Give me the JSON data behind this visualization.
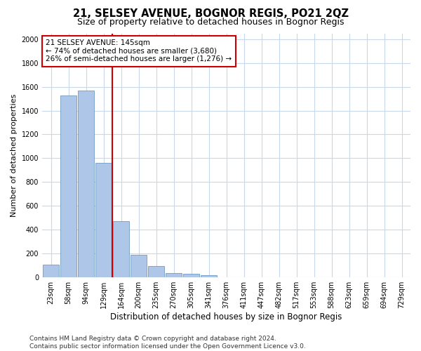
{
  "title": "21, SELSEY AVENUE, BOGNOR REGIS, PO21 2QZ",
  "subtitle": "Size of property relative to detached houses in Bognor Regis",
  "xlabel": "Distribution of detached houses by size in Bognor Regis",
  "ylabel": "Number of detached properties",
  "categories": [
    "23sqm",
    "58sqm",
    "94sqm",
    "129sqm",
    "164sqm",
    "200sqm",
    "235sqm",
    "270sqm",
    "305sqm",
    "341sqm",
    "376sqm",
    "411sqm",
    "447sqm",
    "482sqm",
    "517sqm",
    "553sqm",
    "588sqm",
    "623sqm",
    "659sqm",
    "694sqm",
    "729sqm"
  ],
  "values": [
    105,
    1530,
    1570,
    960,
    470,
    190,
    90,
    35,
    25,
    15,
    0,
    0,
    0,
    0,
    0,
    0,
    0,
    0,
    0,
    0,
    0
  ],
  "bar_color": "#aec6e8",
  "bar_edge_color": "#5b8db8",
  "vline_x_index": 3,
  "vline_color": "#cc0000",
  "ylim": [
    0,
    2050
  ],
  "yticks": [
    0,
    200,
    400,
    600,
    800,
    1000,
    1200,
    1400,
    1600,
    1800,
    2000
  ],
  "annotation_line1": "21 SELSEY AVENUE: 145sqm",
  "annotation_line2": "← 74% of detached houses are smaller (3,680)",
  "annotation_line3": "26% of semi-detached houses are larger (1,276) →",
  "annotation_box_color": "#ffffff",
  "annotation_border_color": "#cc0000",
  "footnote": "Contains HM Land Registry data © Crown copyright and database right 2024.\nContains public sector information licensed under the Open Government Licence v3.0.",
  "bg_color": "#ffffff",
  "grid_color": "#c8d8ea",
  "title_fontsize": 10.5,
  "subtitle_fontsize": 9,
  "xlabel_fontsize": 8.5,
  "ylabel_fontsize": 8,
  "tick_fontsize": 7,
  "annotation_fontsize": 7.5,
  "footnote_fontsize": 6.5
}
